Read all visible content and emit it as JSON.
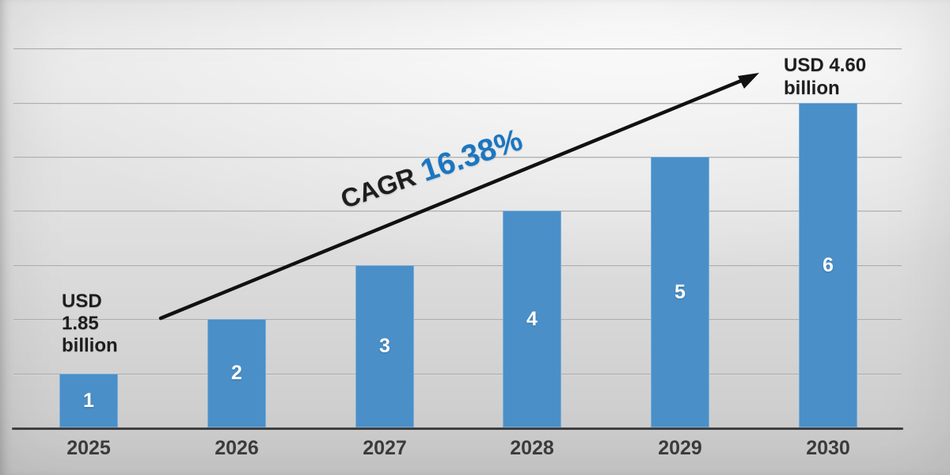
{
  "chart_data": {
    "type": "bar",
    "title": "",
    "xlabel": "",
    "ylabel": "",
    "categories": [
      "2025",
      "2026",
      "2027",
      "2028",
      "2029",
      "2030"
    ],
    "values": [
      1,
      2,
      3,
      4,
      5,
      6
    ],
    "bar_labels": [
      "1",
      "2",
      "3",
      "4",
      "5",
      "6"
    ],
    "ylim": [
      0,
      7
    ],
    "grid": true,
    "legend": false,
    "annotations": {
      "start_value": "USD 1.85 billion",
      "end_value": "USD 4.60 billion",
      "cagr": "CAGR 16.38%"
    }
  },
  "ui": {
    "start_lines": [
      "USD",
      "1.85",
      "billion"
    ],
    "end_lines": [
      "USD 4.60",
      "billion"
    ],
    "cagr_prefix": "CAGR",
    "cagr_value": "16.38%"
  },
  "colors": {
    "bar_fill": "#4A8FC8",
    "bar_border": "#7DAED9",
    "bar_label": "#FFFFFF",
    "cagr_blue": "#1B76C2",
    "text_dark": "#1E1E1E",
    "year_label": "#3B3B3B",
    "gridline": "#A6A6A6",
    "axis": "#3F3F3F",
    "arrow": "#111111"
  }
}
